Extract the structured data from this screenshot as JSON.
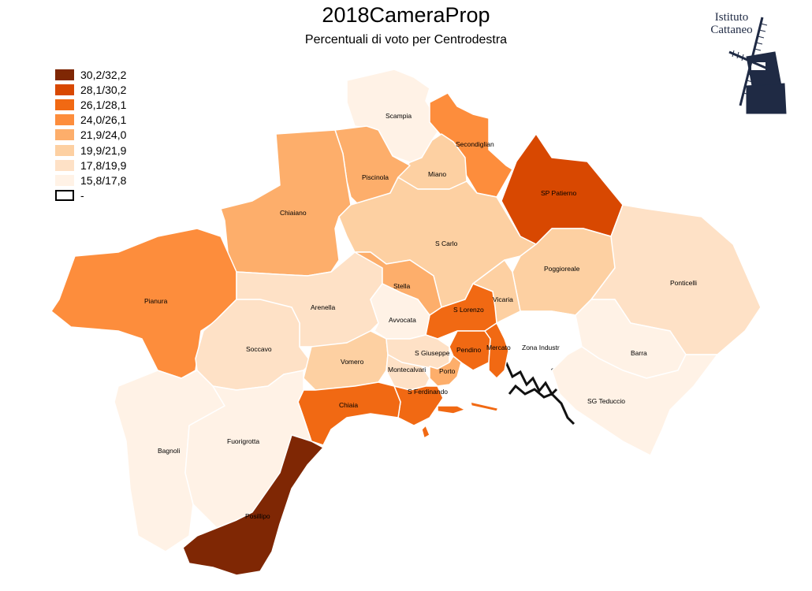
{
  "title": "2018CameraProp",
  "subtitle": "Percentuali di voto per Centrodestra",
  "logo": {
    "name": "Istituto Cattaneo",
    "line1": "Istituto",
    "line2": "Cattaneo",
    "icon": "windmill-icon",
    "color": "#1f2a44"
  },
  "legend": [
    {
      "label": "30,2/32,2",
      "color": "#7f2704"
    },
    {
      "label": "28,1/30,2",
      "color": "#d84801"
    },
    {
      "label": "26,1/28,1",
      "color": "#f16913"
    },
    {
      "label": "24,0/26,1",
      "color": "#fd8d3c"
    },
    {
      "label": "21,9/24,0",
      "color": "#fdae6b"
    },
    {
      "label": "19,9/21,9",
      "color": "#fdd0a2"
    },
    {
      "label": "17,8/19,9",
      "color": "#fee1c6"
    },
    {
      "label": "15,8/17,8",
      "color": "#fff2e6"
    },
    {
      "label": "-",
      "color": "#ffffff"
    }
  ],
  "areas": [
    {
      "name": "Scampia",
      "cls": 7
    },
    {
      "name": "Secondiglian",
      "cls": 3
    },
    {
      "name": "Miano",
      "cls": 5
    },
    {
      "name": "Piscinola",
      "cls": 4
    },
    {
      "name": "Chiaiano",
      "cls": 4
    },
    {
      "name": "SP Patierno",
      "cls": 1
    },
    {
      "name": "S Carlo",
      "cls": 5
    },
    {
      "name": "Poggioreale",
      "cls": 5
    },
    {
      "name": "Ponticelli",
      "cls": 6
    },
    {
      "name": "Pianura",
      "cls": 3
    },
    {
      "name": "Arenella",
      "cls": 6
    },
    {
      "name": "Stella",
      "cls": 4
    },
    {
      "name": "Vicaria",
      "cls": 5
    },
    {
      "name": "S Lorenzo",
      "cls": 2
    },
    {
      "name": "Avvocata",
      "cls": 7
    },
    {
      "name": "Soccavo",
      "cls": 6
    },
    {
      "name": "Zona Industr",
      "cls": 8
    },
    {
      "name": "Barra",
      "cls": 7
    },
    {
      "name": "Vomero",
      "cls": 5
    },
    {
      "name": "S Giuseppe",
      "cls": 6
    },
    {
      "name": "Pendino",
      "cls": 2
    },
    {
      "name": "Mercato",
      "cls": 2
    },
    {
      "name": "Montecalvari",
      "cls": 6
    },
    {
      "name": "Porto",
      "cls": 4
    },
    {
      "name": "S Ferdinando",
      "cls": 2
    },
    {
      "name": "Chiaia",
      "cls": 2
    },
    {
      "name": "SG Teduccio",
      "cls": 7
    },
    {
      "name": "Bagnoli",
      "cls": 7
    },
    {
      "name": "Fuorigrotta",
      "cls": 7
    },
    {
      "name": "Posillipo",
      "cls": 0
    }
  ]
}
